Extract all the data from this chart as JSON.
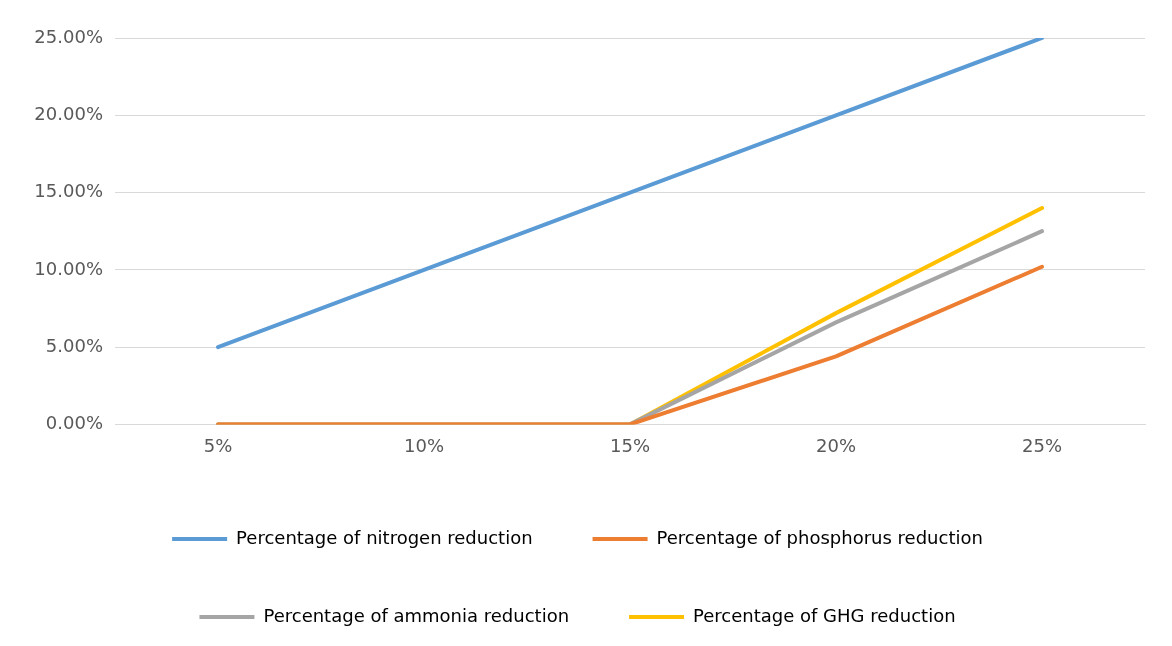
{
  "chart_data": {
    "type": "line",
    "categories": [
      "5%",
      "10%",
      "15%",
      "20%",
      "25%"
    ],
    "series": [
      {
        "name": "Percentage of nitrogen reduction",
        "color": "#5b9bd5",
        "values": [
          5,
          10,
          15,
          20,
          25
        ]
      },
      {
        "name": "Percentage of phosphorus reduction",
        "color": "#ed7d31",
        "values": [
          0,
          0,
          0,
          4.4,
          10.2
        ]
      },
      {
        "name": "Percentage of ammonia reduction",
        "color": "#a5a5a5",
        "values": [
          0,
          0,
          0,
          6.6,
          12.5
        ]
      },
      {
        "name": "Percentage of GHG reduction",
        "color": "#ffc000",
        "values": [
          0,
          0,
          0,
          7.2,
          14
        ]
      }
    ],
    "ylim": [
      0,
      25
    ],
    "yticks": [
      {
        "value": 0,
        "label": "0.00%"
      },
      {
        "value": 5,
        "label": "5.00%"
      },
      {
        "value": 10,
        "label": "10.00%"
      },
      {
        "value": 15,
        "label": "15.00%"
      },
      {
        "value": 20,
        "label": "20.00%"
      },
      {
        "value": 25,
        "label": "25.00%"
      }
    ],
    "grid": "y",
    "legend": "bottom",
    "marker": "none",
    "line_style": "solid"
  }
}
